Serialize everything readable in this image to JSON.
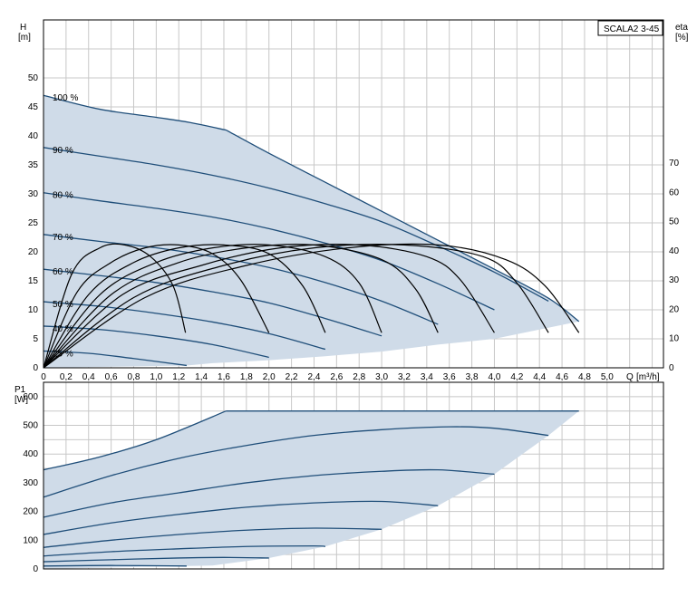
{
  "chart_data": [
    {
      "type": "line",
      "model_label": "SCALA2 3-45",
      "y_label_name": "H",
      "y_label_unit": "[m]",
      "y2_label_name": "eta",
      "y2_label_unit": "[%]",
      "x_label_name": "Q",
      "x_label_unit": "[m³/h]",
      "xlim": [
        0,
        5.5
      ],
      "ylim": [
        0,
        60
      ],
      "y2lim": [
        0,
        70
      ],
      "x_ticks": [
        "0",
        "0,2",
        "0,4",
        "0,6",
        "0,8",
        "1,0",
        "1,2",
        "1,4",
        "1,6",
        "1,8",
        "2,0",
        "2,2",
        "2,4",
        "2,6",
        "2,8",
        "3,0",
        "3,2",
        "3,4",
        "3,6",
        "3,8",
        "4,0",
        "4,2",
        "4,4",
        "4,6",
        "4,8",
        "5,0"
      ],
      "y_ticks": [
        "0",
        "5",
        "10",
        "15",
        "20",
        "25",
        "30",
        "35",
        "40",
        "45",
        "50"
      ],
      "y2_ticks": [
        "0",
        "10",
        "20",
        "30",
        "40",
        "50",
        "60",
        "70"
      ],
      "grid": true,
      "colors": {
        "curve": "#1f4e79",
        "envelope": "#cfdbe8",
        "efficiency": "#000000"
      },
      "head_curves": [
        {
          "label": "100 %",
          "x": [
            0,
            0.5,
            1.0,
            1.3,
            1.62
          ],
          "y": [
            47,
            44.6,
            43.2,
            42.3,
            41
          ]
        },
        {
          "label": "90 %",
          "x": [
            0,
            0.5,
            1.0,
            1.5,
            2.0,
            2.5,
            3.0,
            3.5,
            4.0,
            4.48
          ],
          "y": [
            38,
            36.5,
            35,
            33.2,
            31,
            28.3,
            25.2,
            21,
            16.5,
            11.5
          ]
        },
        {
          "label": "80 %",
          "x": [
            0,
            0.5,
            1.0,
            1.5,
            2.0,
            2.5,
            3.0,
            3.5,
            4.0
          ],
          "y": [
            30.2,
            28.8,
            27.5,
            26.0,
            24.0,
            21.5,
            18.5,
            14.5,
            10
          ]
        },
        {
          "label": "70 %",
          "x": [
            0,
            0.5,
            1.0,
            1.5,
            2.0,
            2.5,
            3.0,
            3.5
          ],
          "y": [
            23,
            21.8,
            20.7,
            19.2,
            17.3,
            14.7,
            11.5,
            7.5
          ]
        },
        {
          "label": "60 %",
          "x": [
            0,
            0.5,
            1.0,
            1.5,
            2.0,
            2.5,
            3.0
          ],
          "y": [
            17,
            15.9,
            14.7,
            13.1,
            11.2,
            8.5,
            5.5
          ]
        },
        {
          "label": "50 %",
          "x": [
            0,
            0.5,
            1.0,
            1.5,
            2.0,
            2.5
          ],
          "y": [
            11.4,
            10.6,
            9.4,
            7.9,
            5.9,
            3.2
          ]
        },
        {
          "label": "40 %",
          "x": [
            0,
            0.5,
            1.0,
            1.5,
            2.0
          ],
          "y": [
            7.2,
            6.6,
            5.5,
            4.0,
            1.8
          ]
        },
        {
          "label": "25 %",
          "x": [
            0,
            0.4,
            0.8,
            1.27
          ],
          "y": [
            2.9,
            2.5,
            1.6,
            0.4
          ]
        }
      ],
      "max_curve": {
        "x": [
          1.62,
          2.0,
          2.5,
          3.0,
          3.5,
          4.0,
          4.48,
          4.75
        ],
        "y": [
          41,
          37,
          32,
          27,
          22,
          17,
          12,
          8
        ]
      },
      "efficiency_curves": [
        {
          "x": [
            0,
            0.25,
            0.5,
            0.72,
            0.95,
            1.15,
            1.26
          ],
          "y": [
            0,
            32,
            41,
            42,
            38,
            28,
            12
          ]
        },
        {
          "x": [
            0,
            0.3,
            0.6,
            0.9,
            1.2,
            1.5,
            1.75,
            2.0
          ],
          "y": [
            0,
            26,
            36,
            41,
            42,
            39,
            30,
            12
          ]
        },
        {
          "x": [
            0,
            0.4,
            0.8,
            1.2,
            1.6,
            2.0,
            2.3,
            2.5
          ],
          "y": [
            0,
            25,
            36,
            41,
            42,
            39,
            28,
            12
          ]
        },
        {
          "x": [
            0,
            0.5,
            1.0,
            1.5,
            2.0,
            2.5,
            2.8,
            3.0
          ],
          "y": [
            0,
            25,
            36,
            41,
            42,
            38,
            29,
            12
          ]
        },
        {
          "x": [
            0,
            0.6,
            1.2,
            1.8,
            2.4,
            3.0,
            3.3,
            3.5
          ],
          "y": [
            0,
            25,
            36,
            41,
            42,
            37,
            27,
            12
          ]
        },
        {
          "x": [
            0,
            0.7,
            1.4,
            2.1,
            2.8,
            3.4,
            3.7,
            4.0
          ],
          "y": [
            0,
            25,
            35,
            41,
            42,
            38,
            30,
            12
          ]
        },
        {
          "x": [
            0,
            0.8,
            1.6,
            2.4,
            3.2,
            3.9,
            4.2,
            4.48
          ],
          "y": [
            0,
            24,
            35,
            41,
            42,
            38,
            29,
            12
          ]
        },
        {
          "x": [
            0,
            0.9,
            1.8,
            2.7,
            3.5,
            4.1,
            4.45,
            4.75
          ],
          "y": [
            0,
            24,
            35,
            41,
            42,
            37,
            28,
            12
          ]
        }
      ],
      "envelope": {
        "x": [
          0,
          0.5,
          1.0,
          1.3,
          1.62,
          2.0,
          2.5,
          3.0,
          3.5,
          4.0,
          4.48,
          4.75,
          4.0,
          3.5,
          3.0,
          2.5,
          2.0,
          1.5,
          1.27,
          0
        ],
        "y": [
          47,
          44.6,
          43.2,
          42.3,
          41,
          37,
          32,
          27,
          22,
          17,
          12,
          8,
          5,
          4,
          2.8,
          2,
          1.3,
          0.8,
          0.4,
          0
        ]
      }
    },
    {
      "type": "line",
      "y_label_name": "P1",
      "y_label_unit": "[W]",
      "xlim": [
        0,
        5.5
      ],
      "ylim": [
        0,
        650
      ],
      "y_ticks": [
        "0",
        "100",
        "200",
        "300",
        "400",
        "500",
        "600"
      ],
      "grid": true,
      "power_curves": [
        {
          "x": [
            0,
            0.5,
            1.0,
            1.62
          ],
          "y": [
            345,
            390,
            450,
            550
          ]
        },
        {
          "x": [
            1.62,
            2.5,
            3.5,
            4.75
          ],
          "y": [
            550,
            550,
            550,
            550
          ]
        },
        {
          "x": [
            0,
            0.6,
            1.2,
            1.8,
            2.4,
            3.0,
            3.6,
            4.0,
            4.48
          ],
          "y": [
            250,
            325,
            385,
            430,
            465,
            485,
            495,
            490,
            465
          ]
        },
        {
          "x": [
            0,
            0.6,
            1.2,
            1.8,
            2.4,
            3.0,
            3.5,
            4.0
          ],
          "y": [
            180,
            230,
            265,
            300,
            325,
            340,
            345,
            330
          ]
        },
        {
          "x": [
            0,
            0.6,
            1.2,
            1.8,
            2.4,
            3.0,
            3.5
          ],
          "y": [
            120,
            160,
            190,
            215,
            230,
            235,
            220
          ]
        },
        {
          "x": [
            0,
            0.6,
            1.2,
            1.8,
            2.4,
            3.0
          ],
          "y": [
            75,
            100,
            120,
            135,
            142,
            138
          ]
        },
        {
          "x": [
            0,
            0.6,
            1.2,
            1.8,
            2.4,
            2.5
          ],
          "y": [
            45,
            60,
            70,
            78,
            80,
            78
          ]
        },
        {
          "x": [
            0,
            0.6,
            1.2,
            1.6,
            2.0
          ],
          "y": [
            25,
            32,
            38,
            40,
            38
          ]
        },
        {
          "x": [
            0,
            0.6,
            1.27
          ],
          "y": [
            10,
            12,
            10
          ]
        }
      ],
      "envelope": {
        "x": [
          0,
          0.5,
          1.0,
          1.62,
          4.75,
          4.48,
          4.0,
          3.5,
          3.0,
          2.5,
          2.0,
          1.5,
          0
        ],
        "y": [
          345,
          390,
          450,
          550,
          550,
          465,
          330,
          220,
          138,
          78,
          38,
          12,
          0
        ]
      }
    }
  ]
}
